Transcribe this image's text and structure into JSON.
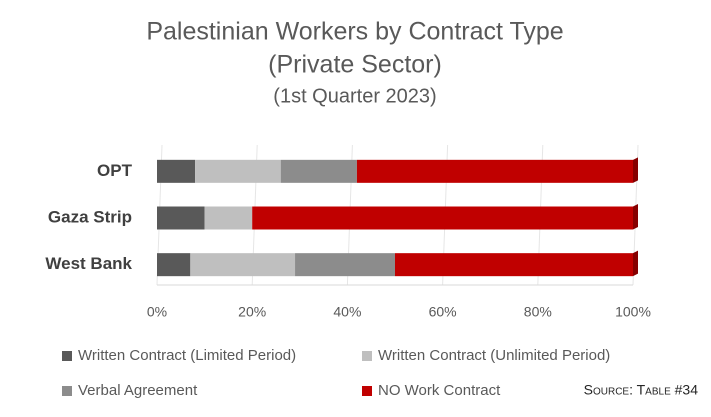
{
  "chart_data": {
    "type": "stacked-barh",
    "title": [
      "Palestinian Workers by Contract Type",
      "(Private Sector)"
    ],
    "subtitle": "(1st Quarter 2023)",
    "categories": [
      "OPT",
      "Gaza Strip",
      "West Bank"
    ],
    "series": [
      {
        "name": "Written Contract (Limited Period)",
        "color": "#595959",
        "values": [
          8,
          10,
          7
        ]
      },
      {
        "name": "Written Contract (Unlimited Period)",
        "color": "#bfbfbf",
        "values": [
          18,
          10,
          22
        ]
      },
      {
        "name": "Verbal Agreement",
        "color": "#8c8c8c",
        "values": [
          16,
          0,
          21
        ]
      },
      {
        "name": "NO Work Contract",
        "color": "#c00000",
        "values": [
          58,
          80,
          50
        ]
      }
    ],
    "xlim": [
      0,
      100
    ],
    "xticks": [
      {
        "value": 0,
        "label": "0%"
      },
      {
        "value": 20,
        "label": "20%"
      },
      {
        "value": 40,
        "label": "40%"
      },
      {
        "value": 60,
        "label": "60%"
      },
      {
        "value": 80,
        "label": "80%"
      },
      {
        "value": 100,
        "label": "100%"
      }
    ],
    "grid": true,
    "source": "Source: Table #34"
  }
}
